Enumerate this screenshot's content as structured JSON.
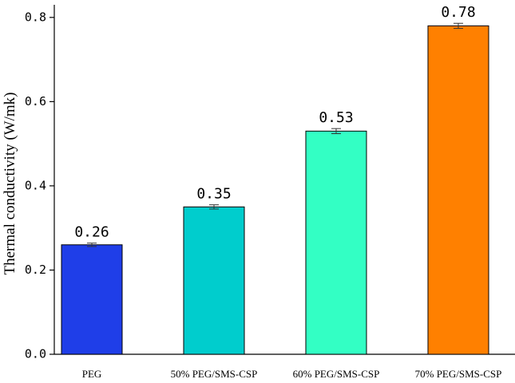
{
  "chart_data": {
    "type": "bar",
    "y_label": "Thermal conductivity (W/mk)",
    "categories": [
      "PEG",
      "50% PEG/SMS-CSP",
      "60% PEG/SMS-CSP",
      "70% PEG/SMS-CSP"
    ],
    "values": [
      0.26,
      0.35,
      0.53,
      0.78
    ],
    "errors": [
      0.004,
      0.005,
      0.006,
      0.006
    ],
    "colors": [
      "#1f3ee8",
      "#00cdcd",
      "#33ffc4",
      "#ff8000"
    ],
    "ylim": [
      0,
      0.83
    ],
    "yticks": [
      {
        "value": 0,
        "label": "0.0"
      },
      0.2,
      0.4,
      0.6,
      0.8
    ]
  }
}
